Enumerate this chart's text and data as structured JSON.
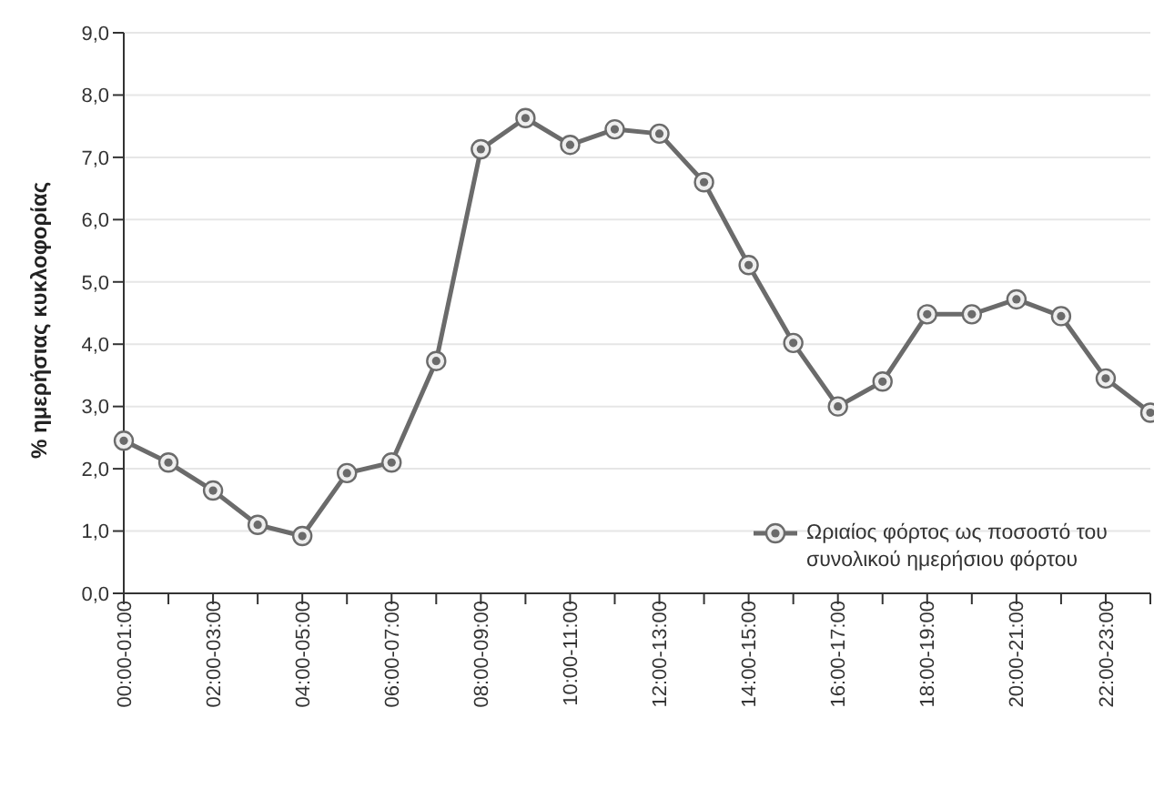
{
  "chart_data": {
    "type": "line",
    "ylabel": "% ημερήσιας κυκλοφορίας",
    "categories": [
      "00:00-01:00",
      null,
      "02:00-03:00",
      null,
      "04:00-05:00",
      null,
      "06:00-07:00",
      null,
      "08:00-09:00",
      null,
      "10:00-11:00",
      null,
      "12:00-13:00",
      null,
      "14:00-15:00",
      null,
      "16:00-17:00",
      null,
      "18:00-19:00",
      null,
      "20:00-21:00",
      null,
      "22:00-23:00",
      null
    ],
    "series": [
      {
        "name": "Ωριαίος φόρτος ως ποσοστό του συνολικού ημερήσιου φόρτου",
        "color": "#6b6b6b",
        "values": [
          2.45,
          2.1,
          1.65,
          1.1,
          0.92,
          1.93,
          2.1,
          3.73,
          7.13,
          7.63,
          7.2,
          7.45,
          7.38,
          6.6,
          5.27,
          4.02,
          3.0,
          3.4,
          4.48,
          4.48,
          4.72,
          4.45,
          3.45,
          2.9
        ]
      }
    ],
    "ylim": [
      0,
      9
    ],
    "yticks": [
      {
        "value": 0,
        "label": "0,0"
      },
      {
        "value": 1,
        "label": "1,0"
      },
      {
        "value": 2,
        "label": "2,0"
      },
      {
        "value": 3,
        "label": "3,0"
      },
      {
        "value": 4,
        "label": "4,0"
      },
      {
        "value": 5,
        "label": "5,0"
      },
      {
        "value": 6,
        "label": "6,0"
      },
      {
        "value": 7,
        "label": "7,0"
      },
      {
        "value": 8,
        "label": "8,0"
      },
      {
        "value": 9,
        "label": "9,0"
      }
    ],
    "grid": "y",
    "legend": "right",
    "marker": "circle",
    "line_style": "solid"
  }
}
